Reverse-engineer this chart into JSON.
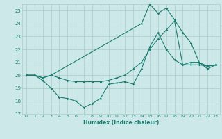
{
  "title": "",
  "xlabel": "Humidex (Indice chaleur)",
  "bg_color": "#cce8e8",
  "line_color": "#1a7a6e",
  "grid_color": "#aacccc",
  "xlim": [
    -0.5,
    23.5
  ],
  "ylim": [
    17,
    25.5
  ],
  "xticks": [
    0,
    1,
    2,
    3,
    4,
    5,
    6,
    7,
    8,
    9,
    10,
    11,
    12,
    13,
    14,
    15,
    16,
    17,
    18,
    19,
    20,
    21,
    22,
    23
  ],
  "yticks": [
    17,
    18,
    19,
    20,
    21,
    22,
    23,
    24,
    25
  ],
  "line1_x": [
    0,
    1,
    2,
    3,
    4,
    5,
    6,
    7,
    8,
    9,
    10,
    11,
    12,
    13,
    14,
    15,
    16,
    17,
    18,
    19,
    20,
    21,
    22,
    23
  ],
  "line1_y": [
    20.0,
    20.0,
    19.6,
    19.0,
    18.3,
    18.2,
    18.0,
    17.5,
    17.8,
    18.2,
    19.3,
    19.4,
    19.5,
    19.3,
    20.5,
    22.2,
    23.3,
    22.0,
    21.2,
    20.8,
    21.0,
    21.0,
    20.7,
    20.8
  ],
  "line2_x": [
    0,
    1,
    2,
    3,
    4,
    5,
    6,
    7,
    8,
    9,
    10,
    11,
    12,
    13,
    14,
    15,
    16,
    17,
    18,
    19,
    20,
    21,
    22,
    23
  ],
  "line2_y": [
    20.0,
    20.0,
    19.8,
    20.0,
    19.8,
    19.6,
    19.5,
    19.5,
    19.5,
    19.5,
    19.6,
    19.8,
    20.0,
    20.5,
    21.0,
    22.0,
    22.8,
    23.5,
    24.2,
    20.8,
    20.8,
    20.8,
    20.7,
    20.8
  ],
  "line3_x": [
    0,
    1,
    2,
    3,
    14,
    15,
    16,
    17,
    18,
    19,
    20,
    21,
    22,
    23
  ],
  "line3_y": [
    20.0,
    20.0,
    19.8,
    20.0,
    24.0,
    25.5,
    24.8,
    25.2,
    24.3,
    23.3,
    22.5,
    21.0,
    20.5,
    20.8
  ]
}
